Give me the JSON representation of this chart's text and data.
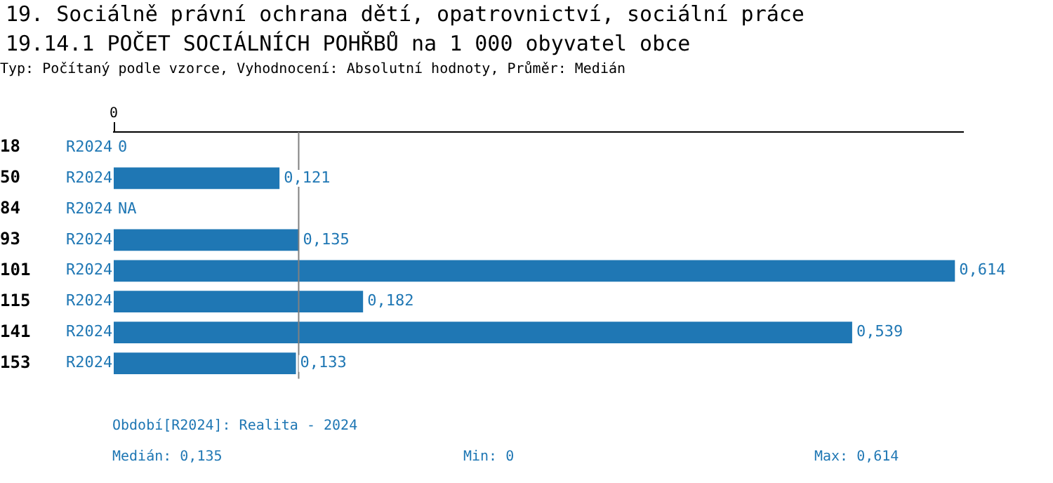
{
  "chart_data": {
    "type": "bar",
    "orientation": "horizontal",
    "title": "19. Sociálně právní ochrana dětí, opatrovnictví, sociální práce",
    "subtitle": "19.14.1 POČET SOCIÁLNÍCH POHŘBŮ na 1 000 obyvatel obce",
    "annotations": [
      "Typ: Počítaný podle vzorce, Vyhodnocení: Absolutní hodnoty, Průměr: Medián",
      "Období[R2024]: Realita - 2024",
      "Medián: 0,135",
      "Min: 0",
      "Max: 0,614",
      "0"
    ],
    "categories": [
      "18",
      "50",
      "84",
      "93",
      "101",
      "115",
      "141",
      "153"
    ],
    "series": [
      {
        "name": "R2024",
        "color": "#1f77b4",
        "values": [
          0,
          0.121,
          null,
          0.135,
          0.614,
          0.182,
          0.539,
          0.133
        ],
        "value_labels": [
          "0",
          "0,121",
          "NA",
          "0,135",
          "0,614",
          "0,182",
          "0,539",
          "0,133"
        ]
      }
    ],
    "xlim": [
      0,
      0.62
    ],
    "ref_lines": [
      {
        "axis": "x",
        "value": 0.135,
        "color": "#808080"
      }
    ],
    "legend": false
  }
}
